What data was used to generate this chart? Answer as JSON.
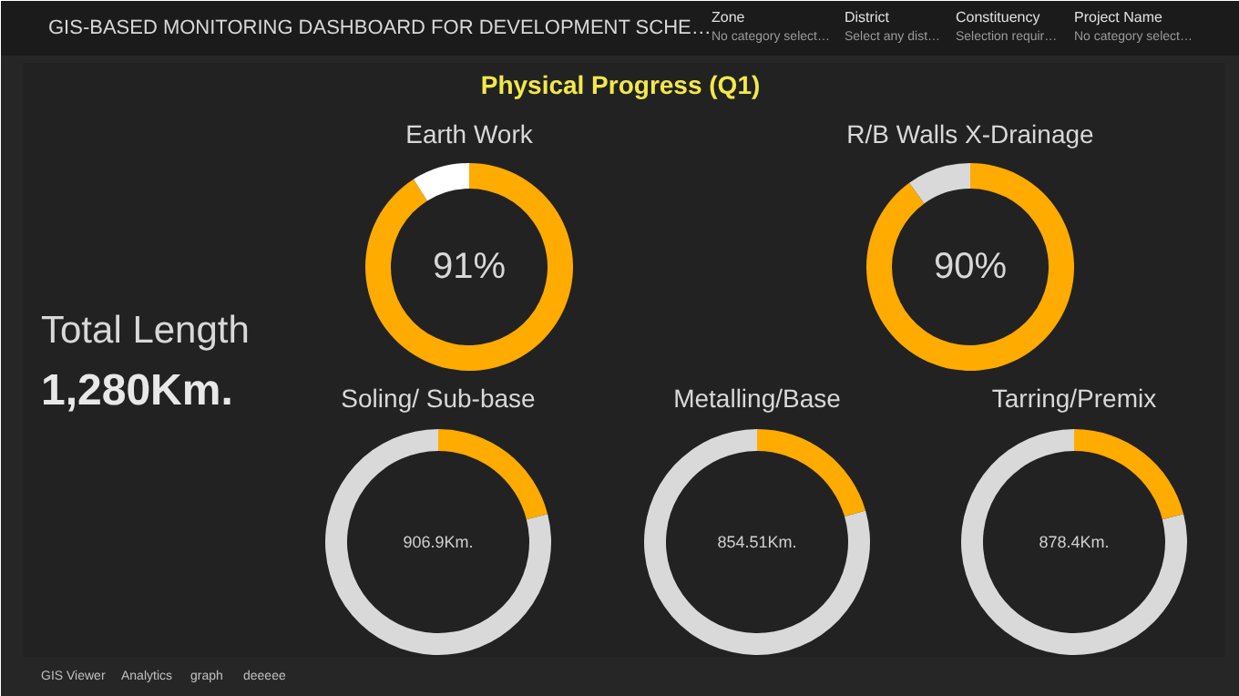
{
  "chart_data": [
    {
      "type": "other",
      "title": "GIS-BASED MONITORING DASHBOARD FOR DEVELOPMENT SCHE…",
      "subtitle": "Physical Progress (Q1)",
      "annotations": [
        "Zone",
        "No category select…",
        "District",
        "Select any dist…",
        "Constituency",
        "Selection requir…",
        "Project Name",
        "No category select…",
        "Total Length",
        "1,280Km.",
        "GIS Viewer",
        "Analytics",
        "graph",
        "deeeee"
      ]
    },
    {
      "type": "donut",
      "title": "Earth Work",
      "categories": [
        null,
        null
      ],
      "values": [
        91,
        9
      ],
      "colors": [
        "#ffab00",
        "#ffffff"
      ],
      "value_labels": [
        "91%",
        null
      ]
    },
    {
      "type": "donut",
      "title": "R/B Walls X-Drainage",
      "categories": [
        null,
        null
      ],
      "values": [
        90,
        10
      ],
      "colors": [
        "#ffab00",
        "#d9d9d9"
      ],
      "value_labels": [
        "90%",
        null
      ]
    },
    {
      "type": "donut",
      "title": "Soling/ Sub-base",
      "categories": [
        null,
        null
      ],
      "values": [
        21,
        79
      ],
      "colors": [
        "#ffab00",
        "#d9d9d9"
      ],
      "annotations": [
        "906.9Km."
      ]
    },
    {
      "type": "donut",
      "title": "Metalling/Base",
      "categories": [
        null,
        null
      ],
      "values": [
        20.5,
        79.5
      ],
      "colors": [
        "#ffab00",
        "#d9d9d9"
      ],
      "annotations": [
        "854.51Km."
      ]
    },
    {
      "type": "donut",
      "title": "Tarring/Premix",
      "categories": [
        null,
        null
      ],
      "values": [
        21,
        79
      ],
      "colors": [
        "#ffab00",
        "#d9d9d9"
      ],
      "annotations": [
        "878.4Km."
      ]
    }
  ]
}
